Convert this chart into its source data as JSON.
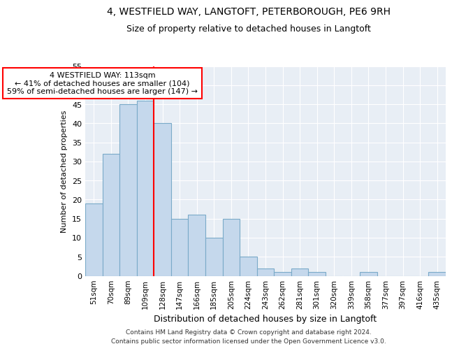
{
  "title1": "4, WESTFIELD WAY, LANGTOFT, PETERBOROUGH, PE6 9RH",
  "title2": "Size of property relative to detached houses in Langtoft",
  "xlabel": "Distribution of detached houses by size in Langtoft",
  "ylabel": "Number of detached properties",
  "footnote1": "Contains HM Land Registry data © Crown copyright and database right 2024.",
  "footnote2": "Contains public sector information licensed under the Open Government Licence v3.0.",
  "categories": [
    "51sqm",
    "70sqm",
    "89sqm",
    "109sqm",
    "128sqm",
    "147sqm",
    "166sqm",
    "185sqm",
    "205sqm",
    "224sqm",
    "243sqm",
    "262sqm",
    "281sqm",
    "301sqm",
    "320sqm",
    "339sqm",
    "358sqm",
    "377sqm",
    "397sqm",
    "416sqm",
    "435sqm"
  ],
  "values": [
    19,
    32,
    45,
    46,
    40,
    15,
    16,
    10,
    15,
    5,
    2,
    1,
    2,
    1,
    0,
    0,
    1,
    0,
    0,
    0,
    1
  ],
  "bar_color": "#c5d8ec",
  "bar_edge_color": "#7aaac8",
  "vline_color": "red",
  "vline_pos": 3.5,
  "annotation_title": "4 WESTFIELD WAY: 113sqm",
  "annotation_line1": "← 41% of detached houses are smaller (104)",
  "annotation_line2": "59% of semi-detached houses are larger (147) →",
  "annotation_box_color": "white",
  "annotation_box_edge": "red",
  "ylim": [
    0,
    55
  ],
  "yticks": [
    0,
    5,
    10,
    15,
    20,
    25,
    30,
    35,
    40,
    45,
    50,
    55
  ],
  "bg_color": "#e8eef5",
  "grid_color": "#ffffff",
  "title1_fontsize": 10,
  "title2_fontsize": 9,
  "xlabel_fontsize": 9,
  "ylabel_fontsize": 8,
  "tick_fontsize": 7.5,
  "footnote_fontsize": 6.5
}
